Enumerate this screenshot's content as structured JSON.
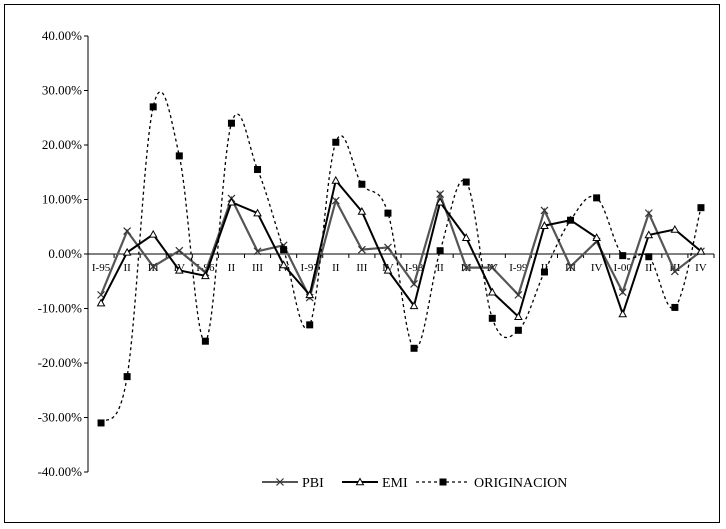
{
  "chart_data": {
    "type": "line",
    "title": "",
    "xlabel": "",
    "ylabel": "",
    "ylim": [
      -40,
      40
    ],
    "yticks": [
      -40,
      -30,
      -20,
      -10,
      0,
      10,
      20,
      30,
      40
    ],
    "ytick_labels": [
      "-40.00%",
      "-30.00%",
      "-20.00%",
      "-10.00%",
      "0.00%",
      "10.00%",
      "20.00%",
      "30.00%",
      "40.00%"
    ],
    "grid": false,
    "legend_position": "bottom-center",
    "categories": [
      "I-95",
      "II",
      "III",
      "IV",
      "I-96",
      "II",
      "III",
      "IV",
      "I-97",
      "II",
      "III",
      "IV",
      "I-98",
      "II",
      "III",
      "IV",
      "I-99",
      "II",
      "III",
      "IV",
      "I-00",
      "II",
      "III",
      "IV"
    ],
    "series": [
      {
        "name": "PBI",
        "style": "gray-x",
        "color": "#555555",
        "values": [
          -7.5,
          4.2,
          -2.3,
          0.6,
          -3.4,
          10.2,
          0.5,
          1.6,
          -8.0,
          9.8,
          0.8,
          1.2,
          -5.5,
          11.0,
          -2.5,
          -2.5,
          -7.5,
          8.0,
          -2.3,
          2.3,
          -7.0,
          7.5,
          -3.2,
          0.5
        ]
      },
      {
        "name": "EMI",
        "style": "black-triangle",
        "color": "#000000",
        "values": [
          -9.0,
          0.3,
          3.6,
          -3.0,
          -4.0,
          9.5,
          7.5,
          -2.0,
          -7.5,
          13.5,
          7.8,
          -3.0,
          -9.5,
          9.5,
          3.0,
          -7.0,
          -11.5,
          5.2,
          6.2,
          3.0,
          -11.0,
          3.5,
          4.5,
          0.5
        ]
      },
      {
        "name": "ORIGINACION",
        "style": "dashed-square",
        "color": "#000000",
        "values": [
          -31.0,
          -22.5,
          27.0,
          18.0,
          -16.0,
          24.0,
          15.5,
          0.8,
          -13.0,
          20.5,
          12.8,
          7.5,
          -17.3,
          0.6,
          13.2,
          -11.8,
          -14.0,
          -3.3,
          6.2,
          10.3,
          -0.3,
          -0.5,
          -9.8,
          8.5
        ]
      }
    ]
  }
}
